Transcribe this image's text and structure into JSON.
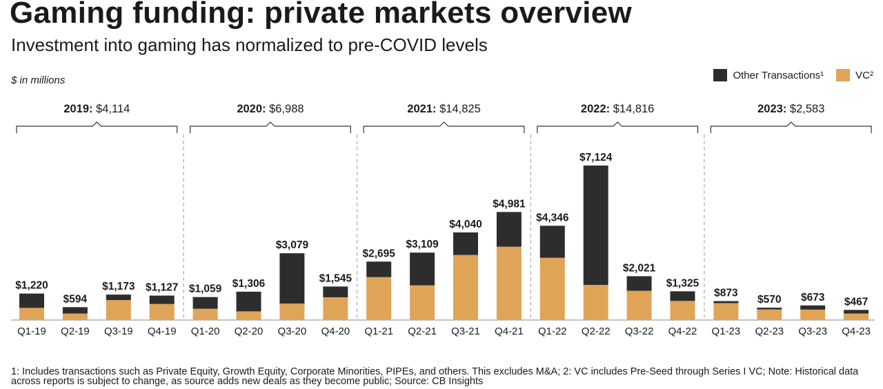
{
  "title": "Gaming funding: private markets overview",
  "subtitle": "Investment into gaming has normalized to pre-COVID levels",
  "unit_label": "$ in millions",
  "footnote": "1: Includes transactions such as Private Equity, Growth Equity, Corporate Minorities, PIPEs, and others. This excludes M&A; 2: VC includes Pre-Seed through Series I VC; Note: Historical data across reports is subject to change, as source adds new deals as they become public; Source: CB Insights",
  "legend": {
    "other_label": "Other Transactions¹",
    "vc_label": "VC²"
  },
  "colors": {
    "other": "#2d2d2d",
    "vc": "#e0a458",
    "divider": "#aaaaaa",
    "text": "#1a1a1a"
  },
  "chart_data": {
    "type": "bar",
    "stacked": true,
    "years": [
      {
        "year": "2019",
        "year_label": "2019:",
        "total_label": "$4,114"
      },
      {
        "year": "2020",
        "year_label": "2020:",
        "total_label": "$6,988"
      },
      {
        "year": "2021",
        "year_label": "2021:",
        "total_label": "$14,825"
      },
      {
        "year": "2022",
        "year_label": "2022:",
        "total_label": "$14,816"
      },
      {
        "year": "2023",
        "year_label": "2023:",
        "total_label": "$2,583"
      }
    ],
    "categories": [
      "Q1-19",
      "Q2-19",
      "Q3-19",
      "Q4-19",
      "Q1-20",
      "Q2-20",
      "Q3-20",
      "Q4-20",
      "Q1-21",
      "Q2-21",
      "Q3-21",
      "Q4-21",
      "Q1-22",
      "Q2-22",
      "Q3-22",
      "Q4-22",
      "Q1-23",
      "Q2-23",
      "Q3-23",
      "Q4-23"
    ],
    "totals": [
      1220,
      594,
      1173,
      1127,
      1059,
      1306,
      3079,
      1545,
      2695,
      3109,
      4040,
      4981,
      4346,
      7124,
      2021,
      1325,
      873,
      570,
      673,
      467
    ],
    "total_labels": [
      "$1,220",
      "$594",
      "$1,173",
      "$1,127",
      "$1,059",
      "$1,306",
      "$3,079",
      "$1,545",
      "$2,695",
      "$3,109",
      "$4,040",
      "$4,981",
      "$4,346",
      "$7,124",
      "$2,021",
      "$1,325",
      "$873",
      "$570",
      "$673",
      "$467"
    ],
    "series": [
      {
        "name": "VC²",
        "values": [
          560,
          300,
          920,
          740,
          520,
          400,
          760,
          1050,
          1980,
          1600,
          3000,
          3380,
          2870,
          1620,
          1350,
          880,
          780,
          490,
          480,
          300
        ]
      },
      {
        "name": "Other Transactions¹",
        "values": [
          660,
          294,
          253,
          387,
          539,
          906,
          2319,
          495,
          715,
          1509,
          1040,
          1601,
          1476,
          5504,
          671,
          445,
          93,
          80,
          193,
          167
        ]
      }
    ],
    "ylim": [
      0,
      7500
    ]
  }
}
